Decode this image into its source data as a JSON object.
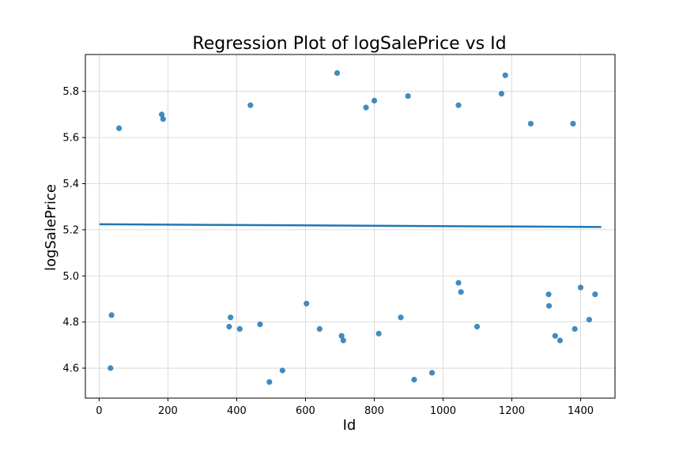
{
  "chart_data": {
    "type": "scatter",
    "title": "Regression Plot of logSalePrice vs Id",
    "xlabel": "Id",
    "ylabel": "logSalePrice",
    "xlim": [
      -40,
      1500
    ],
    "ylim": [
      4.47,
      5.96
    ],
    "xticks": [
      0,
      200,
      400,
      600,
      800,
      1000,
      1200,
      1400
    ],
    "yticks": [
      4.6,
      4.8,
      5.0,
      5.2,
      5.4,
      5.6,
      5.8
    ],
    "ytick_labels": [
      "4.6",
      "4.8",
      "5.0",
      "5.2",
      "5.4",
      "5.6",
      "5.8"
    ],
    "grid": true,
    "point_color": "#1f77b4",
    "line_color": "#1f77b4",
    "regression_line": {
      "x": [
        1,
        1460
      ],
      "y": [
        5.224,
        5.212
      ]
    },
    "series": [
      {
        "values": [
          [
            33,
            4.6
          ],
          [
            495,
            4.54
          ],
          [
            533,
            4.59
          ],
          [
            916,
            4.55
          ],
          [
            968,
            4.58
          ],
          [
            692,
            5.88
          ],
          [
            1181,
            5.87
          ],
          [
            898,
            5.78
          ],
          [
            1170,
            5.79
          ],
          [
            800,
            5.76
          ],
          [
            440,
            5.74
          ],
          [
            1045,
            5.74
          ],
          [
            776,
            5.73
          ],
          [
            182,
            5.7
          ],
          [
            186,
            5.68
          ],
          [
            58,
            5.64
          ],
          [
            1255,
            5.66
          ],
          [
            1378,
            5.66
          ],
          [
            36,
            4.83
          ],
          [
            382,
            4.82
          ],
          [
            409,
            4.77
          ],
          [
            468,
            4.79
          ],
          [
            641,
            4.77
          ],
          [
            813,
            4.75
          ],
          [
            877,
            4.82
          ],
          [
            1099,
            4.78
          ],
          [
            1383,
            4.77
          ],
          [
            1425,
            4.81
          ],
          [
            1326,
            4.74
          ],
          [
            1340,
            4.72
          ],
          [
            705,
            4.74
          ],
          [
            710,
            4.72
          ],
          [
            378,
            4.78
          ],
          [
            603,
            4.88
          ],
          [
            1308,
            4.87
          ],
          [
            1307,
            4.92
          ],
          [
            1442,
            4.92
          ],
          [
            1400,
            4.95
          ],
          [
            1045,
            4.97
          ],
          [
            1052,
            4.93
          ]
        ]
      }
    ]
  }
}
